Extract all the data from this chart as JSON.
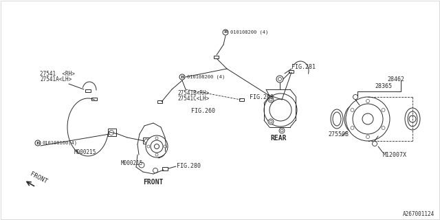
{
  "bg_color": "#ffffff",
  "lc": "#2a2a2a",
  "fig_code": "A267001124",
  "labels": {
    "p27541": "27541 <RH>\n27541A<LH>",
    "p27541B": "27541B<RH>\n27541C<LH>",
    "bolt200_top": "B 010108200 (4)",
    "bolt200_mid": "B 010108200 (4)",
    "bolt160": "B 010108160(4)",
    "M000215a": "M000215",
    "M000215b": "M000215",
    "fig260a": "FIG.260",
    "fig260b": "FIG.260",
    "fig280": "FIG.280",
    "fig281": "FIG.281",
    "REAR": "REAR",
    "FRONT_bot": "FRONT",
    "p28462": "28462",
    "p28365": "28365",
    "p27550B": "27550B",
    "M12007X": "M12007X"
  }
}
